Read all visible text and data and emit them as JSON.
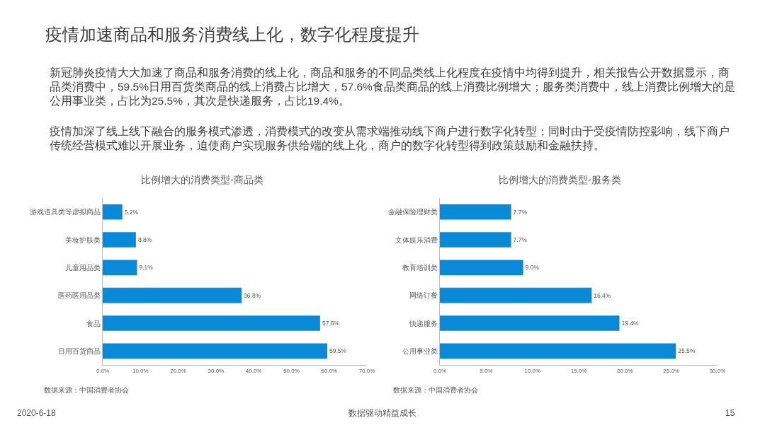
{
  "chart_data": [
    {
      "type": "other",
      "title": "疫情加速商品和服务消费线上化，数字化程度提升",
      "annotations": [
        "新冠肺炎疫情大大加速了商品和服务消费的线上化，商品和服务的不同品类线上化程度在疫情中均得到提升，相关报告公开数据显示，商品类消费中，59.5%日用百货类商品的线上消费占比增大，57.6%食品类商品的线上消费比例增大；服务类消费中，线上消费比例增大的是公用事业类，占比为25.5%，其次是快递服务，占比19.4%。",
        "疫情加深了线上线下融合的服务模式渗透，消费模式的改变从需求端推动线下商户进行数字化转型；同时由于受疫情防控影响，线下商户传统经营模式难以开展业务，迫使商户实现服务供给端的线上化，商户的数字化转型得到政策鼓励和金融扶持。",
        "2020-6-18",
        "数据驱动精益成长",
        "15"
      ]
    },
    {
      "type": "bar",
      "orientation": "horizontal",
      "title": "比例增大的消费类型-商品类",
      "categories": [
        "游戏道具类等虚拟商品",
        "美妆护肤类",
        "儿童用品类",
        "医药医用品类",
        "食品",
        "日用百货商品"
      ],
      "values": [
        5.2,
        8.8,
        9.1,
        36.8,
        57.6,
        59.5
      ],
      "value_labels": [
        "5.2%",
        "8.8%",
        "9.1%",
        "36.8%",
        "57.6%",
        "59.5%"
      ],
      "color": "#0a8ad6",
      "xlim": [
        0,
        70
      ],
      "xticks": [
        {
          "value": 0,
          "label": "0.0%"
        },
        {
          "value": 10,
          "label": "10.0%"
        },
        {
          "value": 20,
          "label": "20.0%"
        },
        {
          "value": 30,
          "label": "30.0%"
        },
        {
          "value": 40,
          "label": "40.0%"
        },
        {
          "value": 50,
          "label": "50.0%"
        },
        {
          "value": 60,
          "label": "60.0%"
        },
        {
          "value": 70,
          "label": "70.0%"
        }
      ],
      "annotations": [
        "数据来源：中国消费者协会"
      ]
    },
    {
      "type": "bar",
      "orientation": "horizontal",
      "title": "比例增大的消费类型-服务类",
      "categories": [
        "金融保险理财类",
        "文体娱乐消费",
        "教育培训类",
        "网络订餐",
        "快递服务",
        "公用事业类"
      ],
      "values": [
        7.7,
        7.7,
        9.0,
        16.4,
        19.4,
        25.5
      ],
      "value_labels": [
        "7.7%",
        "7.7%",
        "9.0%",
        "16.4%",
        "19.4%",
        "25.5%"
      ],
      "color": "#0a8ad6",
      "xlim": [
        0,
        30
      ],
      "xticks": [
        {
          "value": 0,
          "label": "0.0%"
        },
        {
          "value": 5,
          "label": "5.0%"
        },
        {
          "value": 10,
          "label": "10.0%"
        },
        {
          "value": 15,
          "label": "15.0%"
        },
        {
          "value": 20,
          "label": "20.0%"
        },
        {
          "value": 25,
          "label": "25.0%"
        },
        {
          "value": 30,
          "label": "30.0%"
        }
      ],
      "annotations": [
        "数据来源：中国消费者协会"
      ]
    }
  ]
}
